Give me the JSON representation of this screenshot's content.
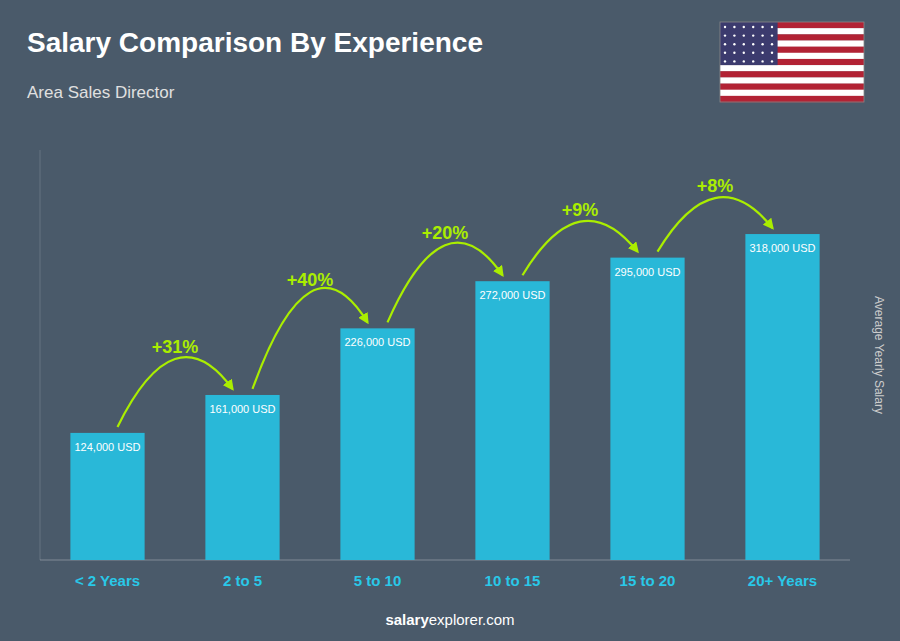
{
  "chart_data": {
    "type": "bar",
    "title": "Salary Comparison By Experience",
    "subtitle": "Area Sales Director",
    "ylabel": "Average Yearly Salary",
    "footer": [
      "salary",
      "explorer.com"
    ],
    "categories": [
      "< 2 Years",
      "2 to 5",
      "5 to 10",
      "10 to 15",
      "15 to 20",
      "20+ Years"
    ],
    "values": [
      124000,
      161000,
      226000,
      272000,
      295000,
      318000
    ],
    "value_labels": [
      "124,000 USD",
      "161,000 USD",
      "226,000 USD",
      "272,000 USD",
      "295,000 USD",
      "318,000 USD"
    ],
    "annotations": [
      "+31%",
      "+40%",
      "+20%",
      "+9%",
      "+8%"
    ],
    "color": "#29b8d8",
    "ylim": [
      0,
      400000
    ],
    "grid": false,
    "data_labels": true,
    "tick_labels": "x"
  }
}
